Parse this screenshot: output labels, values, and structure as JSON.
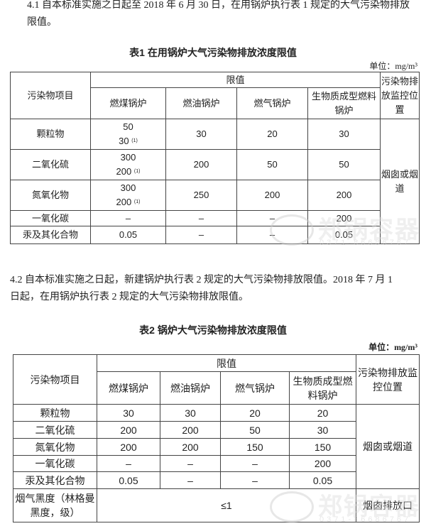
{
  "section_4_1": {
    "line1": "4.1  自本标准实施之日起至 2018 年 6 月 30 日，在用锅炉执行表 1 规定的大气污染物排放",
    "line2": "限值。"
  },
  "table1": {
    "title": "表1   在用锅炉大气污染物排放浓度限值",
    "unit": "单位：mg/m³",
    "header": {
      "item": "污染物项目",
      "limit": "限值",
      "columns": [
        "燃煤锅炉",
        "燃油锅炉",
        "燃气锅炉",
        "生物质成型燃料锅炉"
      ],
      "location": "污染物排放监控位置"
    },
    "rows": [
      {
        "item": "颗粒物",
        "coal": "50",
        "coal2": "30",
        "note": "(1)",
        "oil": "30",
        "gas": "20",
        "bio": "30"
      },
      {
        "item": "二氧化硫",
        "coal": "300",
        "coal2": "200",
        "note": "(1)",
        "oil": "200",
        "gas": "50",
        "bio": "50"
      },
      {
        "item": "氮氧化物",
        "coal": "300",
        "coal2": "200",
        "note": "(1)",
        "oil": "250",
        "gas": "200",
        "bio": "200"
      },
      {
        "item": "一氧化碳",
        "coal": "–",
        "oil": "–",
        "gas": "–",
        "bio": "200"
      },
      {
        "item": "汞及其化合物",
        "coal": "0.05",
        "oil": "–",
        "gas": "–",
        "bio": "0.05"
      }
    ],
    "location_value": "烟囱或烟道"
  },
  "section_4_2": {
    "line1": "4.2  自本标准实施之日起，新建锅炉执行表 2 规定的大气污染物排放限值。2018 年 7 月 1",
    "line2": "日起，在用锅炉执行表 2 规定的大气污染物排放限值。"
  },
  "table2": {
    "title": "表2    锅炉大气污染物排放浓度限值",
    "unit": "单位：mg/m³",
    "header": {
      "item": "污染物项目",
      "limit": "限值",
      "columns": [
        "燃煤锅炉",
        "燃油锅炉",
        "燃气锅炉",
        "生物质成型燃料锅炉"
      ],
      "location": "污染物排放监控位置"
    },
    "rows": [
      {
        "item": "颗粒物",
        "coal": "30",
        "oil": "30",
        "gas": "20",
        "bio": "20"
      },
      {
        "item": "二氧化硫",
        "coal": "200",
        "oil": "200",
        "gas": "50",
        "bio": "30"
      },
      {
        "item": "氮氧化物",
        "coal": "200",
        "oil": "200",
        "gas": "150",
        "bio": "150"
      },
      {
        "item": "一氧化碳",
        "coal": "–",
        "oil": "–",
        "gas": "–",
        "bio": "200"
      },
      {
        "item": "汞及其化合物",
        "coal": "0.05",
        "oil": "–",
        "gas": "–",
        "bio": "0.05"
      }
    ],
    "location_value": "烟囱或烟道",
    "smoke_row": {
      "item": "烟气黑度（林格曼黑度，级）",
      "value": "≤1",
      "location": "烟囱排放口"
    }
  },
  "watermark": {
    "name": "郑锅容器",
    "phone": "0371-86686767"
  }
}
